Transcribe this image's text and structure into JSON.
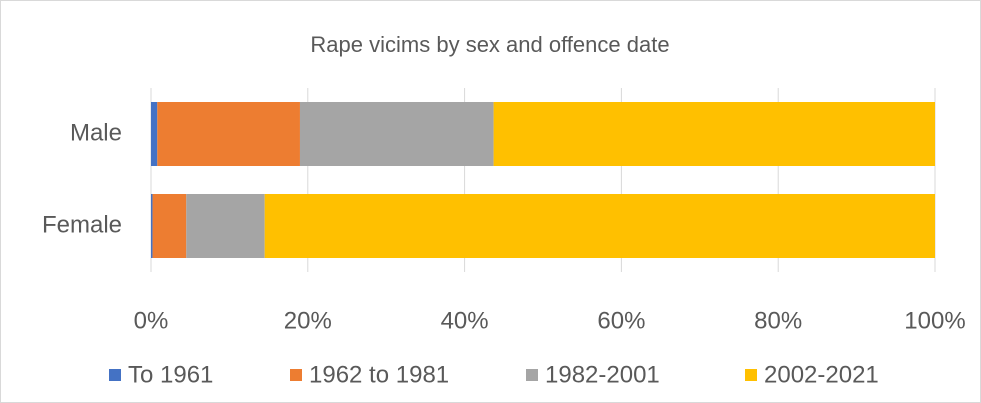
{
  "chart_data": {
    "type": "stacked-bar-horizontal",
    "title": "Rape vicims by sex and offence date",
    "categories": [
      "Male",
      "Female"
    ],
    "series": [
      {
        "name": "To 1961",
        "color": "#4472c4",
        "values": [
          0.8,
          0.2
        ]
      },
      {
        "name": "1962 to 1981",
        "color": "#ed7d31",
        "values": [
          18.2,
          4.3
        ]
      },
      {
        "name": "1982-2001",
        "color": "#a5a5a5",
        "values": [
          24.7,
          10.0
        ]
      },
      {
        "name": "2002-2021",
        "color": "#ffc000",
        "values": [
          56.3,
          85.5
        ]
      }
    ],
    "xlim": [
      0,
      100
    ],
    "xticks": [
      {
        "value": 0,
        "label": "0%"
      },
      {
        "value": 20,
        "label": "20%"
      },
      {
        "value": 40,
        "label": "40%"
      },
      {
        "value": 60,
        "label": "60%"
      },
      {
        "value": 80,
        "label": "80%"
      },
      {
        "value": 100,
        "label": "100%"
      }
    ],
    "grid": true,
    "legend": "bottom"
  }
}
